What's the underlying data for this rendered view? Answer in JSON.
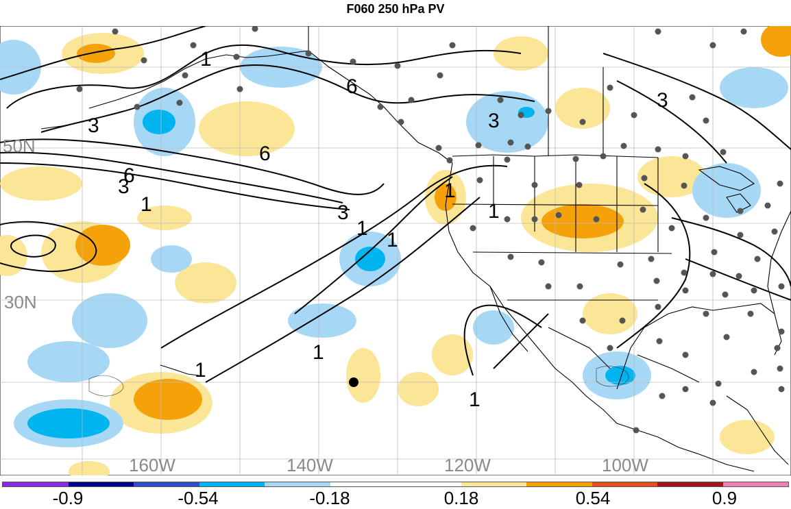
{
  "title": "F060 250 hPa PV",
  "map": {
    "lat_labels": [
      "50N",
      "30N"
    ],
    "lon_labels": [
      "160W",
      "140W",
      "120W",
      "100W"
    ],
    "contour_labels": [
      "1",
      "3",
      "6"
    ],
    "shading_colors": {
      "strong_negative": "#00b4f0",
      "weak_negative": "#a6d8f6",
      "weak_positive": "#fbe597",
      "moderate_positive": "#f5a20a"
    }
  },
  "colorbar": {
    "labels": [
      "-0.9",
      "-0.54",
      "-0.18",
      "0.18",
      "0.54",
      "0.9"
    ],
    "colors": [
      "#8a2be2",
      "#000080",
      "#3050c8",
      "#00b4f0",
      "#a6d8f6",
      "#ffffff",
      "#ffffff",
      "#fbe597",
      "#f5a20a",
      "#e2501c",
      "#a0141c",
      "#f080b4"
    ]
  }
}
